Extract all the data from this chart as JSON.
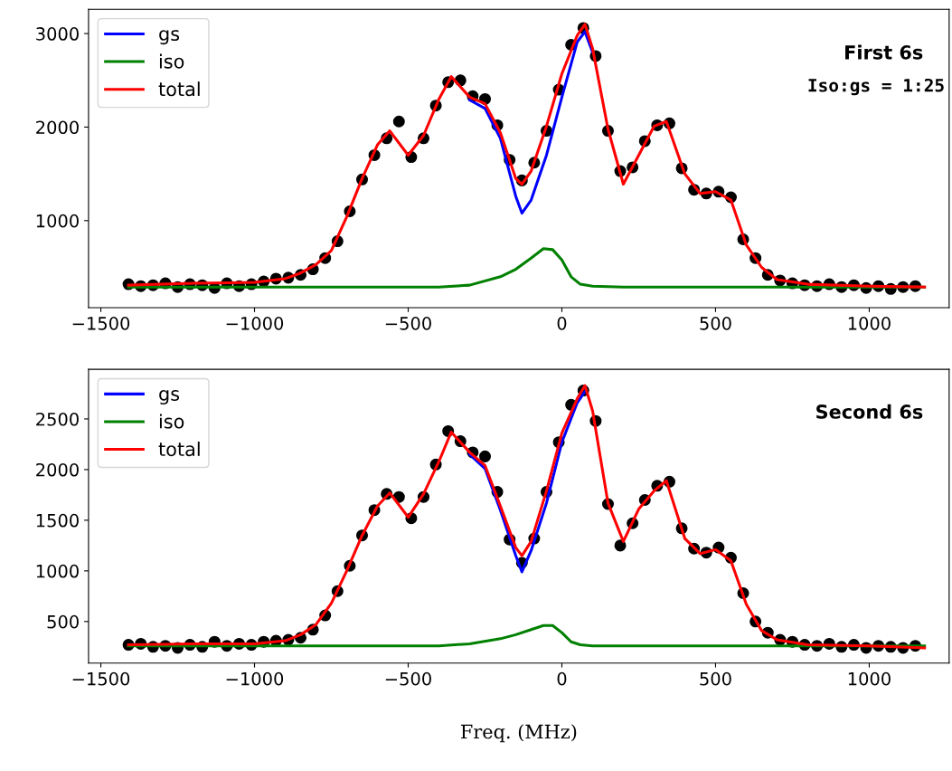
{
  "chart_data": [
    {
      "type": "line",
      "annotations": [
        "First 6s",
        "Iso:gs = 1:25"
      ],
      "xlim": [
        -1540,
        1260
      ],
      "ylim": [
        70,
        3260
      ],
      "xticks": [
        -1500,
        -1000,
        -500,
        0,
        500,
        1000
      ],
      "yticks": [
        1000,
        2000,
        3000
      ],
      "legend": "top left",
      "grid": false,
      "series": [
        {
          "type": "scatter",
          "marker": "circle",
          "color": "#000000",
          "x": [
            -1410,
            -1370,
            -1330,
            -1290,
            -1250,
            -1210,
            -1170,
            -1130,
            -1090,
            -1050,
            -1010,
            -970,
            -930,
            -890,
            -850,
            -810,
            -770,
            -730,
            -690,
            -650,
            -610,
            -570,
            -530,
            -490,
            -450,
            -410,
            -370,
            -330,
            -290,
            -250,
            -210,
            -170,
            -130,
            -90,
            -50,
            -10,
            30,
            70,
            110,
            150,
            190,
            230,
            270,
            310,
            350,
            390,
            430,
            470,
            510,
            550,
            590,
            630,
            670,
            710,
            750,
            790,
            830,
            870,
            910,
            950,
            990,
            1030,
            1070,
            1110,
            1150
          ],
          "values": [
            320,
            300,
            310,
            330,
            290,
            320,
            310,
            280,
            330,
            300,
            320,
            350,
            380,
            390,
            420,
            480,
            600,
            780,
            1100,
            1440,
            1700,
            1880,
            2060,
            1680,
            1880,
            2230,
            2480,
            2500,
            2330,
            2300,
            2020,
            1650,
            1430,
            1620,
            1960,
            2400,
            2880,
            3060,
            2760,
            1960,
            1530,
            1570,
            1850,
            2020,
            2040,
            1560,
            1330,
            1290,
            1310,
            1250,
            800,
            600,
            420,
            360,
            330,
            310,
            300,
            320,
            290,
            310,
            280,
            300,
            270,
            290,
            300
          ]
        },
        {
          "name": "gs",
          "color": "#0000ff",
          "x": [
            -300,
            -250,
            -200,
            -150,
            -130,
            -100,
            -50,
            0,
            50,
            75,
            100
          ],
          "values": [
            2290,
            2200,
            1880,
            1260,
            1080,
            1220,
            1700,
            2320,
            2910,
            3020,
            2800
          ]
        },
        {
          "name": "iso",
          "color": "#008000",
          "x": [
            -1410,
            -400,
            -300,
            -200,
            -150,
            -100,
            -60,
            -30,
            0,
            30,
            60,
            100,
            200,
            1180
          ],
          "values": [
            290,
            290,
            310,
            400,
            480,
            600,
            700,
            690,
            580,
            400,
            320,
            300,
            290,
            290
          ]
        },
        {
          "name": "total",
          "color": "#ff0000",
          "x": [
            -1410,
            -1200,
            -1000,
            -900,
            -850,
            -800,
            -750,
            -700,
            -650,
            -600,
            -560,
            -500,
            -450,
            -400,
            -360,
            -300,
            -250,
            -200,
            -150,
            -130,
            -100,
            -50,
            0,
            50,
            75,
            100,
            150,
            200,
            250,
            300,
            340,
            400,
            450,
            500,
            550,
            600,
            650,
            700,
            800,
            1000,
            1180
          ],
          "values": [
            310,
            330,
            340,
            380,
            440,
            530,
            680,
            1040,
            1450,
            1810,
            1960,
            1700,
            1910,
            2300,
            2540,
            2320,
            2250,
            1940,
            1450,
            1390,
            1530,
            2010,
            2570,
            2980,
            3100,
            2840,
            1980,
            1390,
            1700,
            2010,
            2060,
            1500,
            1290,
            1310,
            1220,
            740,
            500,
            370,
            320,
            300,
            290
          ]
        }
      ]
    },
    {
      "type": "line",
      "annotations": [
        "Second 6s"
      ],
      "xlabel": "Freq. (MHz)",
      "xlim": [
        -1540,
        1260
      ],
      "ylim": [
        90,
        2990
      ],
      "xticks": [
        -1500,
        -1000,
        -500,
        0,
        500,
        1000
      ],
      "yticks": [
        500,
        1000,
        1500,
        2000,
        2500
      ],
      "legend": "top left",
      "grid": false,
      "series": [
        {
          "type": "scatter",
          "marker": "circle",
          "color": "#000000",
          "x": [
            -1410,
            -1370,
            -1330,
            -1290,
            -1250,
            -1210,
            -1170,
            -1130,
            -1090,
            -1050,
            -1010,
            -970,
            -930,
            -890,
            -850,
            -810,
            -770,
            -730,
            -690,
            -650,
            -610,
            -570,
            -530,
            -490,
            -450,
            -410,
            -370,
            -330,
            -290,
            -250,
            -210,
            -170,
            -130,
            -90,
            -50,
            -10,
            30,
            70,
            110,
            150,
            190,
            230,
            270,
            310,
            350,
            390,
            430,
            470,
            510,
            550,
            590,
            630,
            670,
            710,
            750,
            790,
            830,
            870,
            910,
            950,
            990,
            1030,
            1070,
            1110,
            1150
          ],
          "values": [
            270,
            280,
            250,
            260,
            240,
            270,
            250,
            300,
            260,
            280,
            270,
            300,
            310,
            320,
            340,
            420,
            560,
            800,
            1050,
            1350,
            1600,
            1760,
            1730,
            1520,
            1730,
            2050,
            2380,
            2280,
            2170,
            2130,
            1780,
            1310,
            1080,
            1320,
            1780,
            2270,
            2640,
            2780,
            2480,
            1660,
            1250,
            1470,
            1700,
            1840,
            1880,
            1420,
            1220,
            1180,
            1230,
            1130,
            780,
            500,
            390,
            320,
            300,
            270,
            260,
            280,
            250,
            270,
            240,
            260,
            250,
            240,
            260
          ]
        },
        {
          "name": "gs",
          "color": "#0000ff",
          "x": [
            -300,
            -250,
            -200,
            -150,
            -130,
            -100,
            -50,
            0,
            50,
            75
          ],
          "values": [
            2150,
            2010,
            1600,
            1150,
            990,
            1200,
            1670,
            2270,
            2660,
            2770
          ]
        },
        {
          "name": "iso",
          "color": "#008000",
          "x": [
            -1410,
            -400,
            -300,
            -200,
            -150,
            -100,
            -60,
            -30,
            0,
            30,
            60,
            100,
            200,
            1180
          ],
          "values": [
            260,
            260,
            280,
            330,
            370,
            420,
            460,
            460,
            390,
            300,
            270,
            260,
            260,
            260
          ]
        },
        {
          "name": "total",
          "color": "#ff0000",
          "x": [
            -1410,
            -1200,
            -1000,
            -900,
            -850,
            -800,
            -750,
            -700,
            -650,
            -600,
            -560,
            -500,
            -450,
            -400,
            -360,
            -300,
            -250,
            -200,
            -150,
            -130,
            -100,
            -50,
            0,
            50,
            75,
            100,
            150,
            200,
            250,
            300,
            340,
            400,
            450,
            500,
            550,
            600,
            650,
            700,
            800,
            1000,
            1180
          ],
          "values": [
            270,
            280,
            280,
            310,
            370,
            470,
            680,
            1000,
            1350,
            1640,
            1770,
            1530,
            1760,
            2080,
            2370,
            2170,
            2040,
            1640,
            1230,
            1150,
            1290,
            1790,
            2360,
            2700,
            2830,
            2580,
            1670,
            1290,
            1610,
            1790,
            1890,
            1320,
            1170,
            1210,
            1100,
            670,
            410,
            320,
            270,
            260,
            240
          ]
        }
      ]
    }
  ]
}
